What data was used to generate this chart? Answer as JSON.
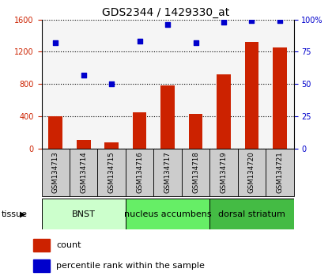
{
  "title": "GDS2344 / 1429330_at",
  "samples": [
    "GSM134713",
    "GSM134714",
    "GSM134715",
    "GSM134716",
    "GSM134717",
    "GSM134718",
    "GSM134719",
    "GSM134720",
    "GSM134721"
  ],
  "counts": [
    400,
    100,
    75,
    450,
    780,
    430,
    920,
    1320,
    1250
  ],
  "percentiles": [
    82,
    57,
    50,
    83,
    96,
    82,
    98,
    99,
    99
  ],
  "bar_color": "#cc2200",
  "dot_color": "#0000cc",
  "ylim_left": [
    0,
    1600
  ],
  "ylim_right": [
    0,
    100
  ],
  "yticks_left": [
    0,
    400,
    800,
    1200,
    1600
  ],
  "yticks_right": [
    0,
    25,
    50,
    75,
    100
  ],
  "ytick_labels_right": [
    "0",
    "25",
    "50",
    "75",
    "100%"
  ],
  "groups": [
    {
      "label": "BNST",
      "start": 0,
      "end": 3,
      "color": "#ccffcc"
    },
    {
      "label": "nucleus accumbens",
      "start": 3,
      "end": 6,
      "color": "#66ee66"
    },
    {
      "label": "dorsal striatum",
      "start": 6,
      "end": 9,
      "color": "#44bb44"
    }
  ],
  "tissue_label": "tissue",
  "legend_count": "count",
  "legend_percentile": "percentile rank within the sample",
  "bar_width": 0.5,
  "title_fontsize": 10,
  "tick_fontsize": 7,
  "label_fontsize": 8,
  "sample_bg_color": "#cccccc",
  "plot_bg_color": "#f5f5f5"
}
